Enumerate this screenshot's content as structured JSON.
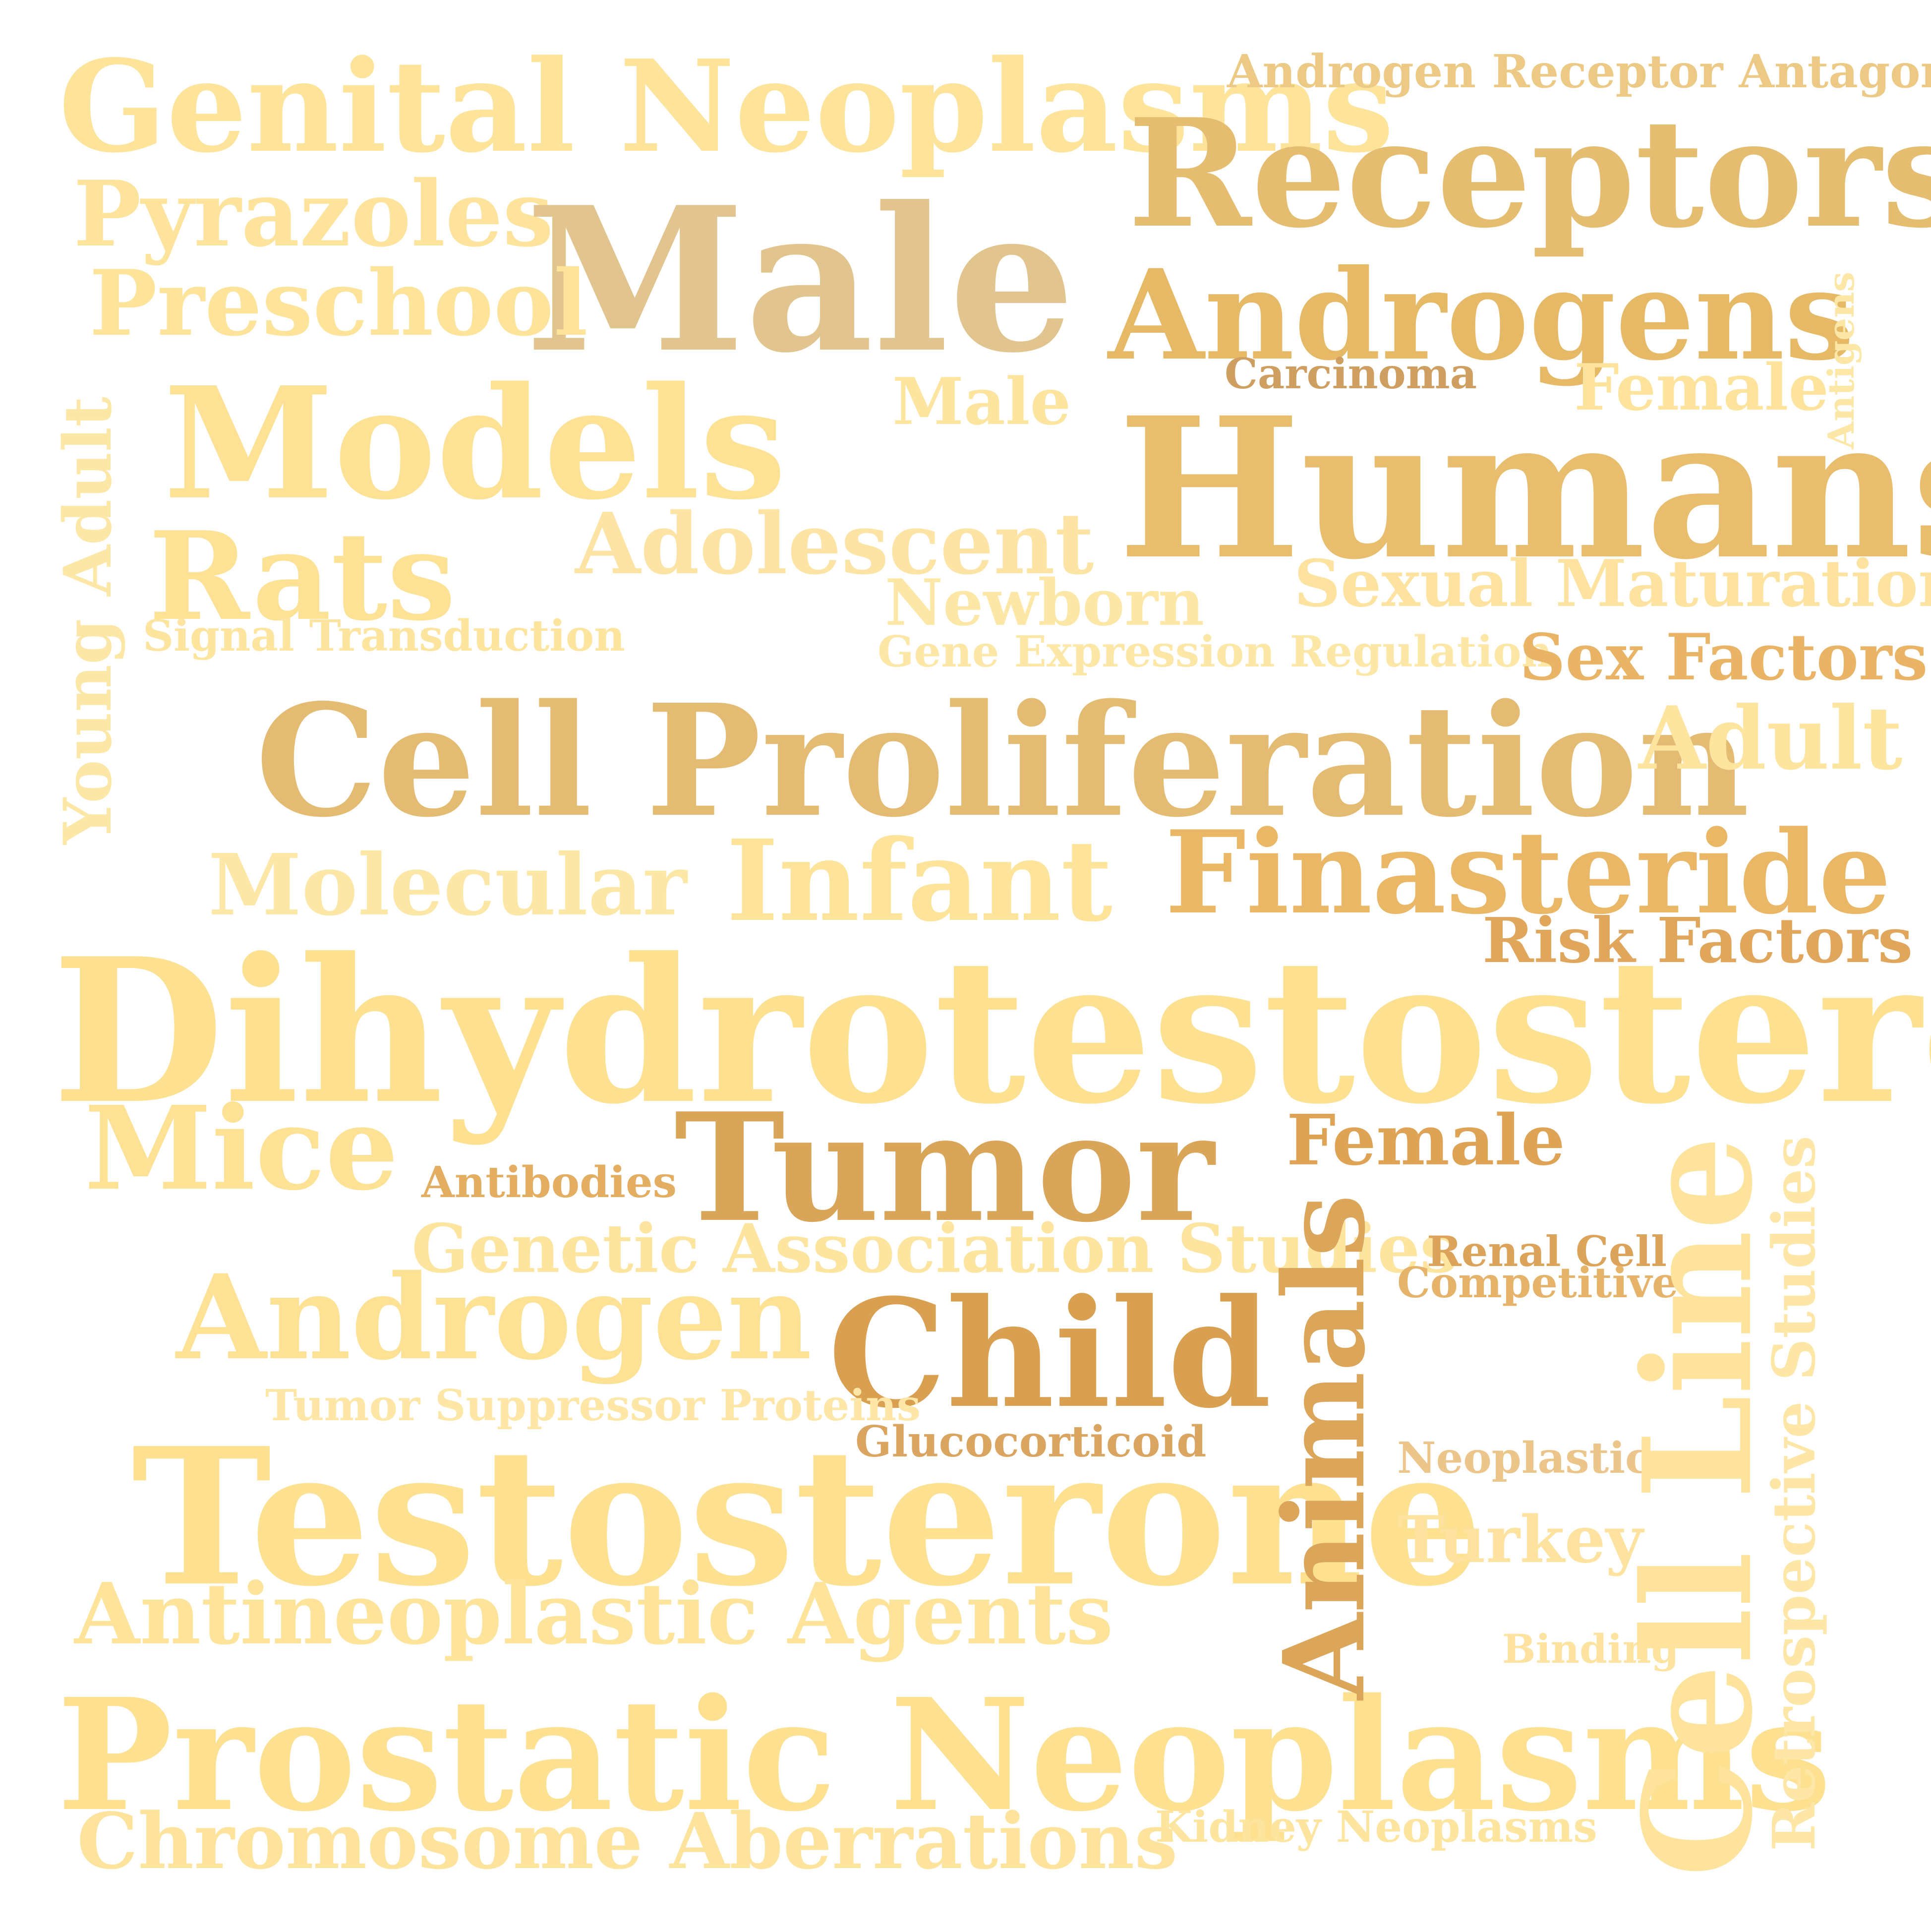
{
  "words": {
    "w0": {
      "text": "Genital Neoplasms",
      "color": "#fde49a"
    },
    "w1": {
      "text": "Androgen Receptor Antagonists",
      "color": "#ecca85"
    },
    "w2": {
      "text": "Receptors",
      "color": "#e5bd70"
    },
    "w3": {
      "text": "Pyrazoles",
      "color": "#fde39b"
    },
    "w4": {
      "text": "Male",
      "color": "#e2c48e"
    },
    "w5": {
      "text": "Preschool",
      "color": "#fde49a"
    },
    "w6": {
      "text": "Androgens",
      "color": "#e6b967"
    },
    "w7": {
      "text": "Antigens",
      "color": "#fde7a6"
    },
    "w8": {
      "text": "Carcinoma",
      "color": "#cf9f62"
    },
    "w9": {
      "text": "Female",
      "color": "#fde39b"
    },
    "w10": {
      "text": "Male",
      "color": "#fde49f"
    },
    "w11": {
      "text": "Models",
      "color": "#fde194"
    },
    "w12": {
      "text": "Young Adult",
      "color": "#fde7a6"
    },
    "w13": {
      "text": "Humans",
      "color": "#e8be6e"
    },
    "w14": {
      "text": "Rats",
      "color": "#fde194"
    },
    "w15": {
      "text": "Adolescent",
      "color": "#fde4a5"
    },
    "w16": {
      "text": "Sexual Maturation",
      "color": "#fde39f"
    },
    "w17": {
      "text": "Newborn",
      "color": "#fde7a6"
    },
    "w18": {
      "text": "Signal Transduction",
      "color": "#fde49f"
    },
    "w19": {
      "text": "Gene Expression Regulation",
      "color": "#fde7a6"
    },
    "w20": {
      "text": "Sex Factors",
      "color": "#e9b466"
    },
    "w21": {
      "text": "Cell Proliferation",
      "color": "#e3bb72"
    },
    "w22": {
      "text": "Adult",
      "color": "#fde49f"
    },
    "w23": {
      "text": "Molecular",
      "color": "#fde7a6"
    },
    "w24": {
      "text": "Infant",
      "color": "#fde49a"
    },
    "w25": {
      "text": "Finasteride",
      "color": "#e9b765"
    },
    "w26": {
      "text": "Risk Factors",
      "color": "#e0a75c"
    },
    "w27": {
      "text": "Dihydrotestosterone",
      "color": "#fde090"
    },
    "w28": {
      "text": "Mice",
      "color": "#fde194"
    },
    "w29": {
      "text": "Tumor",
      "color": "#d9a558"
    },
    "w30": {
      "text": "Female",
      "color": "#dea355"
    },
    "w31": {
      "text": "Antibodies",
      "color": "#e3ae62"
    },
    "w32": {
      "text": "Genetic Association Studies",
      "color": "#fde49f"
    },
    "w33": {
      "text": "Animals",
      "color": "#dba55a"
    },
    "w34": {
      "text": "Renal Cell",
      "color": "#dca35a"
    },
    "w35": {
      "text": "Competitive",
      "color": "#e5b369"
    },
    "w36": {
      "text": "Cell Line",
      "color": "#fde39b"
    },
    "w37": {
      "text": "Retrospective Studies",
      "color": "#fde6a6"
    },
    "w38": {
      "text": "Androgen",
      "color": "#fde194"
    },
    "w39": {
      "text": "Child",
      "color": "#d9a052"
    },
    "w40": {
      "text": "Tumor Suppressor Proteins",
      "color": "#fde6a6"
    },
    "w41": {
      "text": "Glucocorticoid",
      "color": "#d9a561"
    },
    "w42": {
      "text": "Neoplastic",
      "color": "#ecc58a"
    },
    "w43": {
      "text": "Testosterone",
      "color": "#fde190"
    },
    "w44": {
      "text": "Turkey",
      "color": "#fde39f"
    },
    "w45": {
      "text": "Antineoplastic Agents",
      "color": "#fde49a"
    },
    "w46": {
      "text": "Binding",
      "color": "#fde39f"
    },
    "w47": {
      "text": "Prostatic Neoplasms",
      "color": "#fde090"
    },
    "w48": {
      "text": "Kidney Neoplasms",
      "color": "#fde49f"
    },
    "w49": {
      "text": "Chromosome Aberrations",
      "color": "#fde39b"
    }
  }
}
